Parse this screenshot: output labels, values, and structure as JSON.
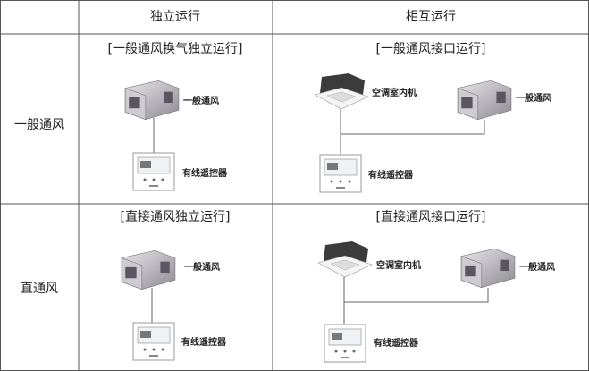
{
  "table": {
    "header": [
      "独立运行",
      "相互运行"
    ],
    "rows": [
      {
        "label": "一般通风",
        "cells": [
          {
            "title": "[一般通风换气独立运行]",
            "devices": [
              "一般通风",
              "有线遥控器"
            ]
          },
          {
            "title": "[一般通风接口运行]",
            "devices": [
              "空调室内机",
              "一般通风",
              "有线遥控器"
            ]
          }
        ]
      },
      {
        "label": "直通风",
        "cells": [
          {
            "title": "[直接通风独立运行]",
            "devices": [
              "一般通风",
              "有线遥控器"
            ]
          },
          {
            "title": "[直接通风接口运行]",
            "devices": [
              "空调室内机",
              "一般通风",
              "有线遥控器"
            ]
          }
        ]
      }
    ]
  }
}
